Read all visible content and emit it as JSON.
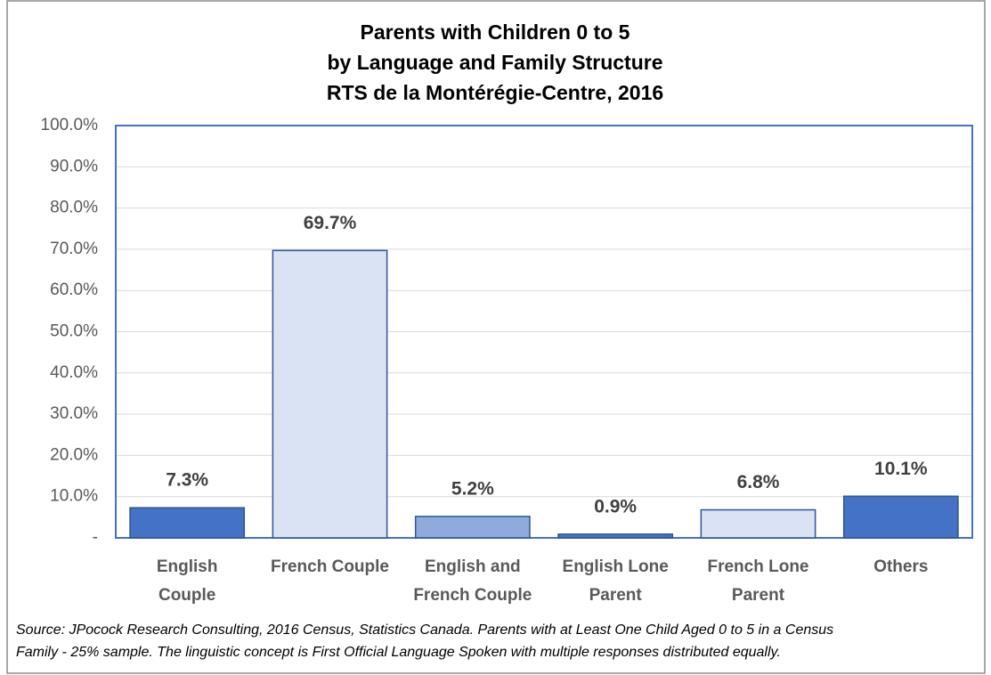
{
  "chart_data": {
    "type": "bar",
    "title": [
      "Parents with Children 0 to 5",
      "by Language and Family Structure",
      "RTS de la Montérégie-Centre, 2016"
    ],
    "categories": [
      [
        "English",
        "Couple"
      ],
      [
        "French Couple"
      ],
      [
        "English and",
        "French Couple"
      ],
      [
        "English Lone",
        "Parent"
      ],
      [
        "French Lone",
        "Parent"
      ],
      [
        "Others"
      ]
    ],
    "values": [
      7.3,
      69.7,
      5.2,
      0.9,
      6.8,
      10.1
    ],
    "value_labels": [
      "7.3%",
      "69.7%",
      "5.2%",
      "0.9%",
      "6.8%",
      "10.1%"
    ],
    "colors": [
      "#4472c4",
      "#dae3f3",
      "#8faadc",
      "#4472c4",
      "#dae3f3",
      "#4472c4"
    ],
    "ylim": [
      0,
      100
    ],
    "yticks": [
      {
        "value": 0,
        "label": "-"
      },
      {
        "value": 10,
        "label": "10.0%"
      },
      {
        "value": 20,
        "label": "20.0%"
      },
      {
        "value": 30,
        "label": "30.0%"
      },
      {
        "value": 40,
        "label": "40.0%"
      },
      {
        "value": 50,
        "label": "50.0%"
      },
      {
        "value": 60,
        "label": "60.0%"
      },
      {
        "value": 70,
        "label": "70.0%"
      },
      {
        "value": 80,
        "label": "80.0%"
      },
      {
        "value": 90,
        "label": "90.0%"
      },
      {
        "value": 100,
        "label": "100.0%"
      }
    ],
    "grid": true,
    "notes": [
      "Source: JPocock Research Consulting, 2016 Census, Statistics Canada. Parents with at Least One Child Aged 0 to 5 in a Census",
      "Family - 25% sample. The linguistic concept is First Official Language Spoken with multiple responses distributed equally."
    ]
  }
}
